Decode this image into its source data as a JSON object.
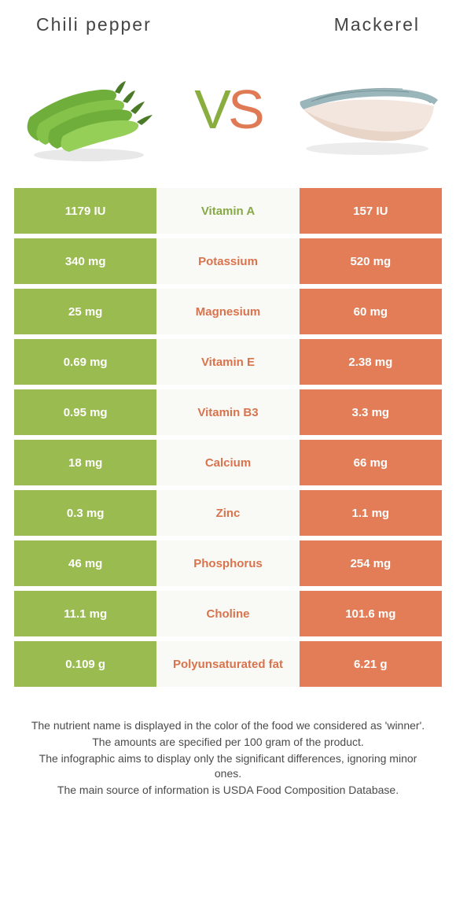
{
  "header": {
    "left_title": "Chili pepper",
    "right_title": "Mackerel",
    "vs_v": "V",
    "vs_s": "S"
  },
  "colors": {
    "green": "#9abb4f",
    "green_text": "#88a948",
    "orange": "#e37d58",
    "orange_text": "#d9734d",
    "mid_bg": "#f9faf5"
  },
  "rows": [
    {
      "left": "1179 IU",
      "nutrient": "Vitamin A",
      "right": "157 IU",
      "winner": "green"
    },
    {
      "left": "340 mg",
      "nutrient": "Potassium",
      "right": "520 mg",
      "winner": "orange"
    },
    {
      "left": "25 mg",
      "nutrient": "Magnesium",
      "right": "60 mg",
      "winner": "orange"
    },
    {
      "left": "0.69 mg",
      "nutrient": "Vitamin E",
      "right": "2.38 mg",
      "winner": "orange"
    },
    {
      "left": "0.95 mg",
      "nutrient": "Vitamin B3",
      "right": "3.3 mg",
      "winner": "orange"
    },
    {
      "left": "18 mg",
      "nutrient": "Calcium",
      "right": "66 mg",
      "winner": "orange"
    },
    {
      "left": "0.3 mg",
      "nutrient": "Zinc",
      "right": "1.1 mg",
      "winner": "orange"
    },
    {
      "left": "46 mg",
      "nutrient": "Phosphorus",
      "right": "254 mg",
      "winner": "orange"
    },
    {
      "left": "11.1 mg",
      "nutrient": "Choline",
      "right": "101.6 mg",
      "winner": "orange"
    },
    {
      "left": "0.109 g",
      "nutrient": "Polyunsaturated fat",
      "right": "6.21 g",
      "winner": "orange"
    }
  ],
  "footnotes": {
    "line1": "The nutrient name is displayed in the color of the food we considered as 'winner'.",
    "line2": "The amounts are specified per 100 gram of the product.",
    "line3": "The infographic aims to display only the significant differences, ignoring minor ones.",
    "line4": "The main source of information is USDA Food Composition Database."
  }
}
